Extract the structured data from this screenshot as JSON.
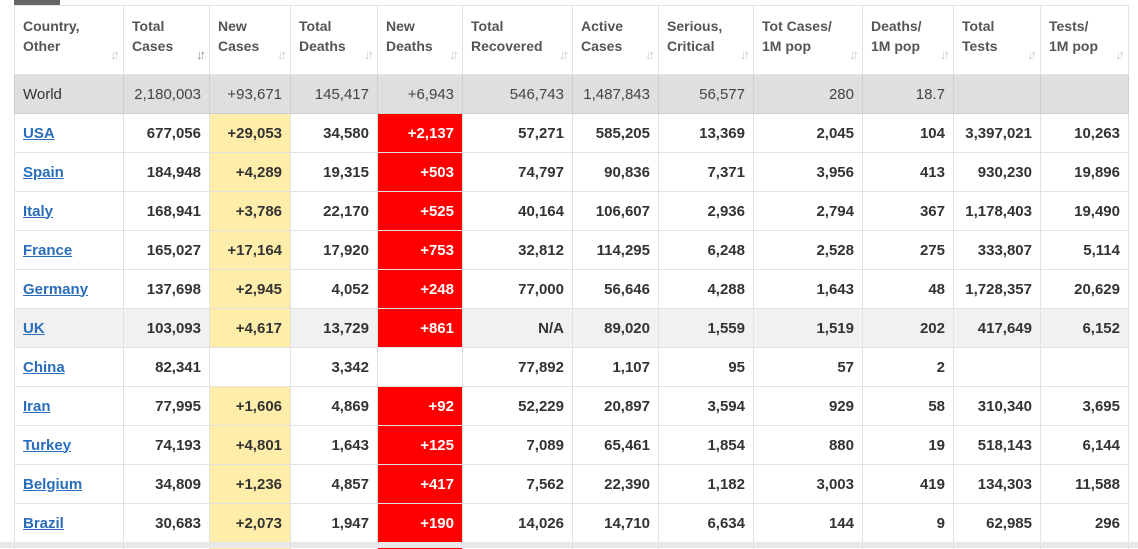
{
  "headers": [
    {
      "line1": "Country,",
      "line2": "Other"
    },
    {
      "line1": "Total",
      "line2": "Cases"
    },
    {
      "line1": "New",
      "line2": "Cases"
    },
    {
      "line1": "Total",
      "line2": "Deaths"
    },
    {
      "line1": "New",
      "line2": "Deaths"
    },
    {
      "line1": "Total",
      "line2": "Recovered"
    },
    {
      "line1": "Active",
      "line2": "Cases"
    },
    {
      "line1": "Serious,",
      "line2": "Critical"
    },
    {
      "line1": "Tot Cases/",
      "line2": "1M pop"
    },
    {
      "line1": "Deaths/",
      "line2": "1M pop"
    },
    {
      "line1": "Total",
      "line2": "Tests"
    },
    {
      "line1": "Tests/",
      "line2": "1M pop"
    }
  ],
  "sort_icon": "sort-updown-icon",
  "world": [
    "World",
    "2,180,003",
    "+93,671",
    "145,417",
    "+6,943",
    "546,743",
    "1,487,843",
    "56,577",
    "280",
    "18.7",
    "",
    ""
  ],
  "rows": [
    [
      "USA",
      "677,056",
      "+29,053",
      "34,580",
      "+2,137",
      "57,271",
      "585,205",
      "13,369",
      "2,045",
      "104",
      "3,397,021",
      "10,263"
    ],
    [
      "Spain",
      "184,948",
      "+4,289",
      "19,315",
      "+503",
      "74,797",
      "90,836",
      "7,371",
      "3,956",
      "413",
      "930,230",
      "19,896"
    ],
    [
      "Italy",
      "168,941",
      "+3,786",
      "22,170",
      "+525",
      "40,164",
      "106,607",
      "2,936",
      "2,794",
      "367",
      "1,178,403",
      "19,490"
    ],
    [
      "France",
      "165,027",
      "+17,164",
      "17,920",
      "+753",
      "32,812",
      "114,295",
      "6,248",
      "2,528",
      "275",
      "333,807",
      "5,114"
    ],
    [
      "Germany",
      "137,698",
      "+2,945",
      "4,052",
      "+248",
      "77,000",
      "56,646",
      "4,288",
      "1,643",
      "48",
      "1,728,357",
      "20,629"
    ],
    [
      "UK",
      "103,093",
      "+4,617",
      "13,729",
      "+861",
      "N/A",
      "89,020",
      "1,559",
      "1,519",
      "202",
      "417,649",
      "6,152"
    ],
    [
      "China",
      "82,341",
      "",
      "3,342",
      "",
      "77,892",
      "1,107",
      "95",
      "57",
      "2",
      "",
      ""
    ],
    [
      "Iran",
      "77,995",
      "+1,606",
      "4,869",
      "+92",
      "52,229",
      "20,897",
      "3,594",
      "929",
      "58",
      "310,340",
      "3,695"
    ],
    [
      "Turkey",
      "74,193",
      "+4,801",
      "1,643",
      "+125",
      "7,089",
      "65,461",
      "1,854",
      "880",
      "19",
      "518,143",
      "6,144"
    ],
    [
      "Belgium",
      "34,809",
      "+1,236",
      "4,857",
      "+417",
      "7,562",
      "22,390",
      "1,182",
      "3,003",
      "419",
      "134,303",
      "11,588"
    ],
    [
      "Brazil",
      "30,683",
      "+2,073",
      "1,947",
      "+190",
      "14,026",
      "14,710",
      "6,634",
      "144",
      "9",
      "62,985",
      "296"
    ]
  ],
  "colors": {
    "new_cases_bg": "#ffeeaa",
    "new_deaths_bg": "#ff0000",
    "link": "#2a6ebb"
  }
}
